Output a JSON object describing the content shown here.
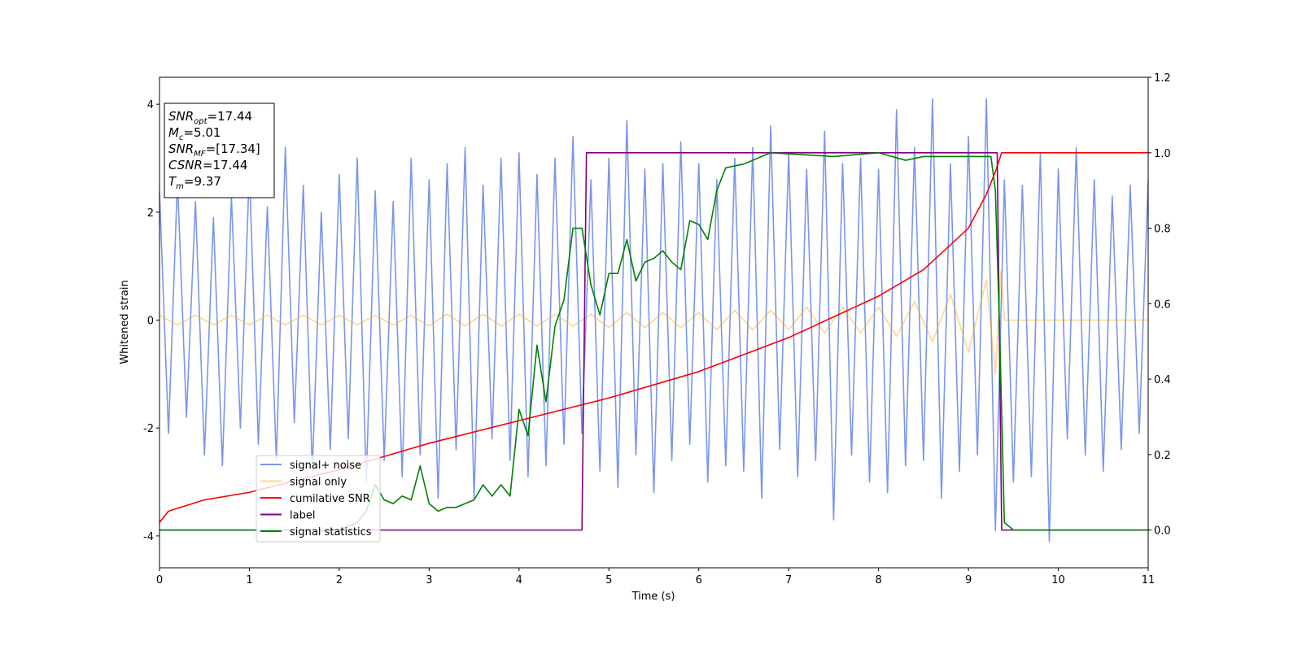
{
  "chart_data": {
    "type": "line",
    "xlabel": "Time (s)",
    "ylabel": "Whitened strain",
    "xlim": [
      0,
      11
    ],
    "ylim": [
      -4.59,
      4.5
    ],
    "y2lim": [
      -0.1,
      1.2
    ],
    "xticks": [
      0,
      1,
      2,
      3,
      4,
      5,
      6,
      7,
      8,
      9,
      10,
      11
    ],
    "yticks": [
      -4,
      -2,
      0,
      2,
      4
    ],
    "y2ticks": [
      {
        "value": 0,
        "label": "0.0"
      },
      0.2,
      0.4,
      0.6,
      0.8,
      {
        "value": 1,
        "label": "1.0"
      },
      1.2
    ],
    "legend_loc": "lower left",
    "annotation": [
      {
        "main": "SNR",
        "sub": "opt",
        "rest": "=17.44"
      },
      {
        "main": "M",
        "sub": "c",
        "rest": "=5.01"
      },
      {
        "main": "SNR",
        "sub": "MF",
        "rest": "=[17.34]"
      },
      {
        "main": "CSNR",
        "rest": "=17.44"
      },
      {
        "main": "T",
        "sub": "m",
        "rest": "=9.37"
      }
    ],
    "series": [
      {
        "name": "signal+ noise",
        "color": "#4169e1",
        "opacity": 0.7,
        "x": [
          0,
          0.1,
          0.2,
          0.3,
          0.4,
          0.5,
          0.6,
          0.7,
          0.8,
          0.9,
          1,
          1.1,
          1.2,
          1.3,
          1.4,
          1.5,
          1.6,
          1.7,
          1.8,
          1.9,
          2,
          2.1,
          2.2,
          2.3,
          2.4,
          2.5,
          2.6,
          2.7,
          2.8,
          2.9,
          3,
          3.1,
          3.2,
          3.3,
          3.4,
          3.5,
          3.6,
          3.7,
          3.8,
          3.9,
          4,
          4.1,
          4.2,
          4.3,
          4.4,
          4.5,
          4.6,
          4.7,
          4.8,
          4.9,
          5,
          5.1,
          5.2,
          5.3,
          5.4,
          5.5,
          5.6,
          5.7,
          5.8,
          5.9,
          6,
          6.1,
          6.2,
          6.3,
          6.4,
          6.5,
          6.6,
          6.7,
          6.8,
          6.9,
          7,
          7.1,
          7.2,
          7.3,
          7.4,
          7.5,
          7.6,
          7.7,
          7.8,
          7.9,
          8,
          8.1,
          8.2,
          8.3,
          8.4,
          8.5,
          8.6,
          8.7,
          8.8,
          8.9,
          9,
          9.1,
          9.2,
          9.3,
          9.4,
          9.5,
          9.6,
          9.7,
          9.8,
          9.9,
          10,
          10.1,
          10.2,
          10.3,
          10.4,
          10.5,
          10.6,
          10.7,
          10.8,
          10.9,
          11
        ],
        "values": [
          2.4,
          -2.1,
          2.6,
          -1.8,
          2.2,
          -2.5,
          1.9,
          -2.7,
          2.3,
          -2.0,
          2.8,
          -2.3,
          2.1,
          -2.6,
          3.2,
          -1.9,
          2.5,
          -2.8,
          2.0,
          -2.4,
          2.7,
          -2.2,
          3.0,
          -3.0,
          2.4,
          -2.6,
          2.2,
          -2.9,
          3.0,
          -2.5,
          2.6,
          -3.3,
          2.9,
          -2.4,
          3.2,
          -3.3,
          2.5,
          -2.2,
          3.0,
          -2.6,
          3.1,
          -2.9,
          2.7,
          -2.7,
          3.0,
          -2.3,
          3.4,
          -2.1,
          2.6,
          -2.8,
          3.0,
          -3.1,
          3.7,
          -2.5,
          2.8,
          -3.2,
          2.9,
          -2.6,
          3.3,
          -2.3,
          2.9,
          -3.0,
          2.6,
          -2.7,
          3.0,
          -2.8,
          3.2,
          -3.3,
          3.6,
          -2.4,
          3.1,
          -2.9,
          2.8,
          -2.6,
          3.5,
          -3.7,
          2.9,
          -2.5,
          3.0,
          -3.0,
          2.8,
          -3.2,
          3.9,
          -2.7,
          3.2,
          -2.6,
          4.1,
          -3.3,
          2.9,
          -2.8,
          3.4,
          -2.5,
          4.1,
          -3.9,
          2.6,
          -3.0,
          2.5,
          -2.9,
          3.1,
          -4.1,
          2.8,
          -2.2,
          3.2,
          -2.5,
          2.6,
          -2.8,
          2.3,
          -2.4,
          2.5,
          -2.1,
          2.6
        ]
      },
      {
        "name": "signal only",
        "color": "#ffa500",
        "opacity": 0.45,
        "x": [
          0,
          0.2,
          0.4,
          0.6,
          0.8,
          1,
          1.2,
          1.4,
          1.6,
          1.8,
          2,
          2.2,
          2.4,
          2.6,
          2.8,
          3,
          3.2,
          3.4,
          3.6,
          3.8,
          4,
          4.2,
          4.4,
          4.6,
          4.8,
          5,
          5.2,
          5.4,
          5.6,
          5.8,
          6,
          6.2,
          6.4,
          6.6,
          6.8,
          7,
          7.2,
          7.4,
          7.6,
          7.8,
          8,
          8.2,
          8.4,
          8.6,
          8.8,
          9,
          9.2,
          9.3,
          9.36,
          9.4,
          11
        ],
        "values": [
          0.09,
          -0.09,
          0.09,
          -0.09,
          0.09,
          -0.09,
          0.09,
          -0.09,
          0.09,
          -0.09,
          0.09,
          -0.09,
          0.09,
          -0.09,
          0.09,
          -0.11,
          0.11,
          -0.11,
          0.11,
          -0.11,
          0.11,
          -0.11,
          0.11,
          -0.11,
          0.11,
          -0.14,
          0.14,
          -0.14,
          0.14,
          -0.14,
          0.14,
          -0.18,
          0.18,
          -0.18,
          0.18,
          -0.18,
          0.24,
          -0.24,
          0.24,
          -0.24,
          0.24,
          -0.3,
          0.34,
          -0.4,
          0.48,
          -0.6,
          0.75,
          -1.0,
          0.9,
          0,
          0
        ]
      },
      {
        "name": "cumilative SNR",
        "color": "#ff0000",
        "axis": "y2",
        "x": [
          0,
          0.1,
          0.5,
          1,
          2,
          3,
          4,
          5,
          6,
          7,
          8,
          8.5,
          9,
          9.2,
          9.3,
          9.37,
          11
        ],
        "values": [
          0.02,
          0.05,
          0.08,
          0.1,
          0.16,
          0.23,
          0.29,
          0.35,
          0.42,
          0.51,
          0.62,
          0.69,
          0.8,
          0.89,
          0.95,
          1,
          1
        ]
      },
      {
        "name": "label",
        "color": "#800080",
        "axis": "y2",
        "x": [
          0,
          4.7,
          4.75,
          9.32,
          9.37,
          11
        ],
        "values": [
          0,
          0,
          1,
          1,
          0,
          0
        ]
      },
      {
        "name": "signal statistics",
        "color": "#008000",
        "axis": "y2",
        "x": [
          0,
          2,
          2.2,
          2.3,
          2.4,
          2.5,
          2.6,
          2.7,
          2.8,
          2.9,
          3,
          3.1,
          3.2,
          3.3,
          3.4,
          3.5,
          3.6,
          3.7,
          3.8,
          3.9,
          4,
          4.1,
          4.2,
          4.3,
          4.4,
          4.5,
          4.6,
          4.7,
          4.8,
          4.9,
          5,
          5.1,
          5.2,
          5.3,
          5.4,
          5.5,
          5.6,
          5.7,
          5.8,
          5.9,
          6,
          6.1,
          6.2,
          6.3,
          6.5,
          6.8,
          7.5,
          8,
          8.3,
          8.5,
          9,
          9.25,
          9.3,
          9.35,
          9.4,
          9.5,
          11
        ],
        "values": [
          0,
          0,
          0.02,
          0.05,
          0.12,
          0.08,
          0.07,
          0.09,
          0.08,
          0.17,
          0.07,
          0.05,
          0.06,
          0.06,
          0.07,
          0.08,
          0.12,
          0.09,
          0.12,
          0.09,
          0.32,
          0.25,
          0.49,
          0.34,
          0.54,
          0.61,
          0.8,
          0.8,
          0.65,
          0.57,
          0.68,
          0.68,
          0.77,
          0.66,
          0.71,
          0.72,
          0.74,
          0.71,
          0.69,
          0.82,
          0.81,
          0.77,
          0.9,
          0.96,
          0.97,
          1,
          0.99,
          1,
          0.98,
          0.99,
          0.99,
          0.99,
          0.9,
          0.5,
          0.02,
          0,
          0
        ]
      }
    ]
  }
}
